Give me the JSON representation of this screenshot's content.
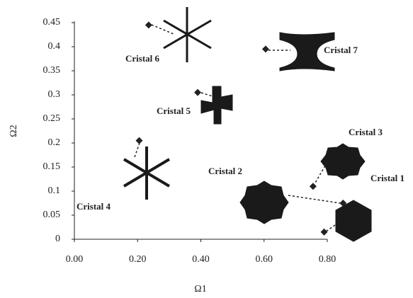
{
  "chart_data": {
    "type": "scatter",
    "xlabel": "Ω1",
    "ylabel": "Ω2",
    "xlim": [
      0,
      0.8
    ],
    "ylim": [
      0,
      0.45
    ],
    "xticks": [
      {
        "value": 0,
        "label": "0.00"
      },
      {
        "value": 0.2,
        "label": "0.20"
      },
      {
        "value": 0.4,
        "label": "0.40"
      },
      {
        "value": 0.6,
        "label": "0.60"
      },
      {
        "value": 0.8,
        "label": "0.80"
      }
    ],
    "yticks": [
      0,
      0.05,
      0.1,
      0.15,
      0.2,
      0.25,
      0.3,
      0.35,
      0.4,
      0.45
    ],
    "color": "#222",
    "labels": [
      "Cristal 1",
      "Cristal 2",
      "Cristal 3",
      "Cristal 4",
      "Cristal 5",
      "Cristal 6",
      "Cristal 7"
    ],
    "x": [
      0.79,
      0.85,
      0.755,
      0.205,
      0.39,
      0.235,
      0.605
    ],
    "values": [
      0.015,
      0.075,
      0.11,
      0.205,
      0.305,
      0.445,
      0.395
    ]
  }
}
